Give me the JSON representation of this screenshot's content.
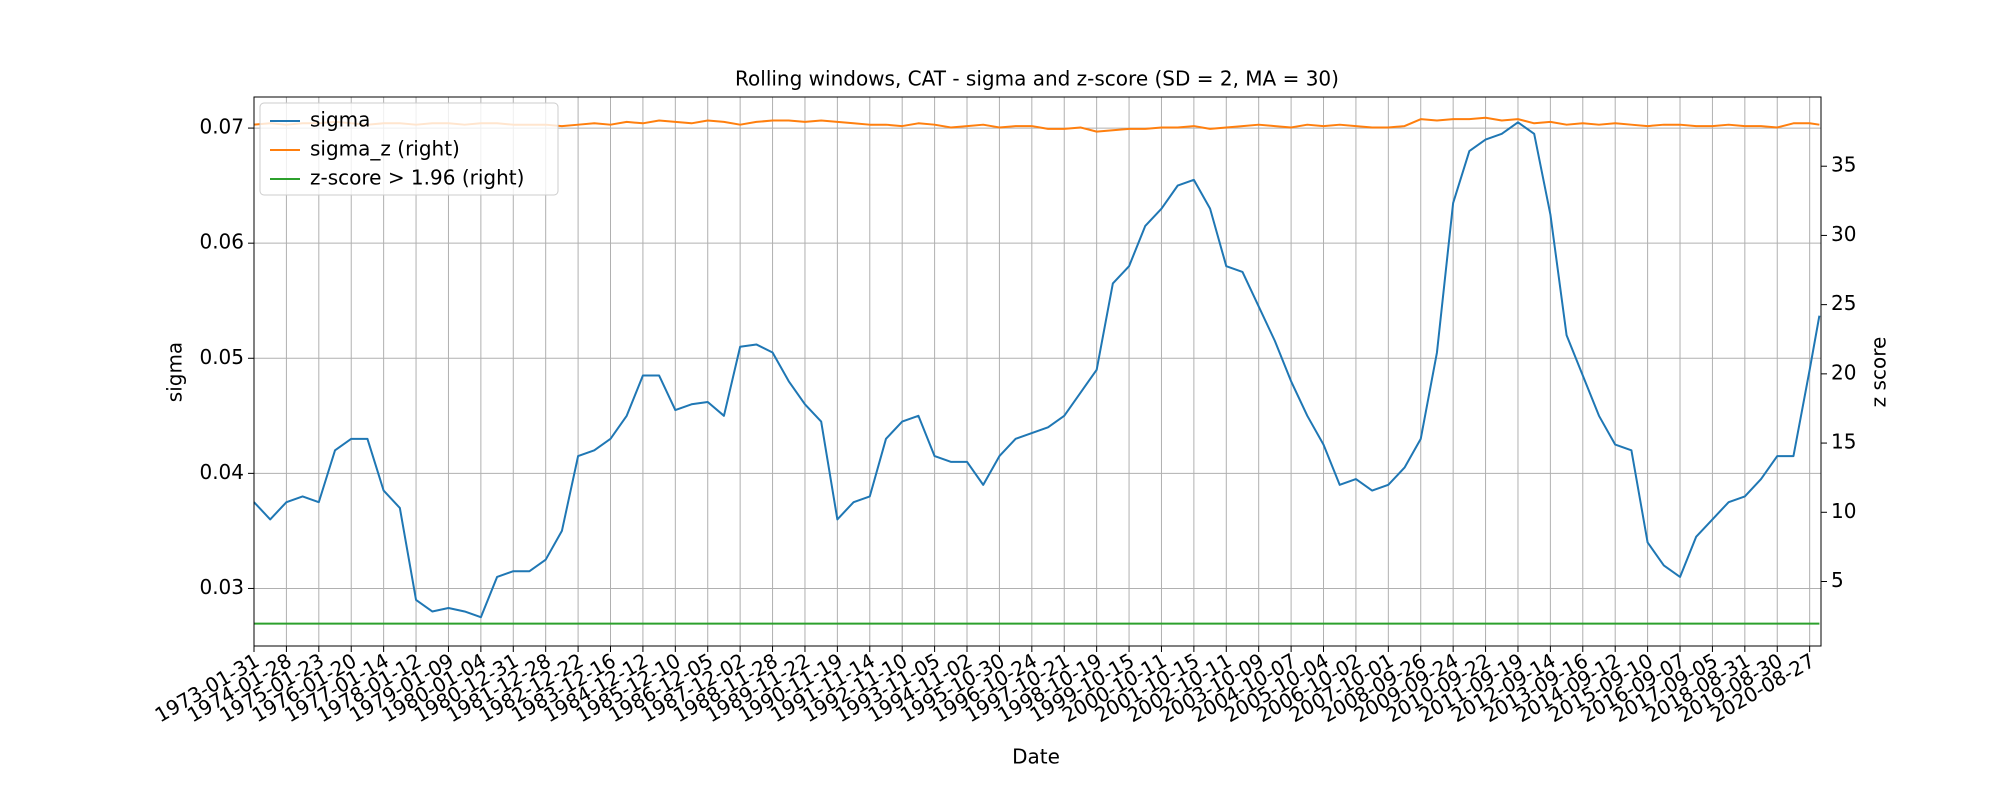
{
  "chart_data": {
    "type": "line",
    "title": "Rolling windows, CAT - sigma and z-score (SD = 2, MA = 30)",
    "x_label": "Date",
    "y_label": "sigma",
    "y2_label": "z score",
    "x": [
      0,
      0.5,
      1,
      1.5,
      2,
      2.5,
      3,
      3.5,
      4,
      4.5,
      5,
      5.5,
      6,
      6.5,
      7,
      7.5,
      8,
      8.5,
      9,
      9.5,
      10,
      10.5,
      11,
      11.5,
      12,
      12.5,
      13,
      13.5,
      14,
      14.5,
      15,
      15.5,
      16,
      16.5,
      17,
      17.5,
      18,
      18.5,
      19,
      19.5,
      20,
      20.5,
      21,
      21.5,
      22,
      22.5,
      23,
      23.5,
      24,
      24.5,
      25,
      25.5,
      26,
      26.5,
      27,
      27.5,
      28,
      28.5,
      29,
      29.5,
      30,
      30.5,
      31,
      31.5,
      32,
      32.5,
      33,
      33.5,
      34,
      34.5,
      35,
      35.5,
      36,
      36.5,
      37,
      37.5,
      38,
      38.5,
      39,
      39.5,
      40,
      40.5,
      41,
      41.5,
      42,
      42.5,
      43,
      43.5,
      44,
      44.5,
      45,
      45.5,
      46,
      46.5,
      47,
      47.5,
      48,
      48.3
    ],
    "series": [
      {
        "name": "sigma",
        "color": "#1f77b4",
        "values": [
          0.0375,
          0.036,
          0.0375,
          0.038,
          0.0375,
          0.042,
          0.043,
          0.043,
          0.0385,
          0.037,
          0.029,
          0.028,
          0.0283,
          0.028,
          0.0275,
          0.031,
          0.0315,
          0.0315,
          0.0325,
          0.035,
          0.0415,
          0.042,
          0.043,
          0.045,
          0.0485,
          0.0485,
          0.0455,
          0.046,
          0.0462,
          0.045,
          0.051,
          0.0512,
          0.0505,
          0.048,
          0.046,
          0.0445,
          0.036,
          0.0375,
          0.038,
          0.043,
          0.0445,
          0.045,
          0.0415,
          0.041,
          0.041,
          0.039,
          0.0415,
          0.043,
          0.0435,
          0.044,
          0.045,
          0.047,
          0.049,
          0.0565,
          0.058,
          0.0615,
          0.063,
          0.065,
          0.0655,
          0.063,
          0.058,
          0.0575,
          0.0545,
          0.0515,
          0.048,
          0.045,
          0.0425,
          0.039,
          0.0395,
          0.0385,
          0.039,
          0.0405,
          0.043,
          0.0505,
          0.0635,
          0.068,
          0.069,
          0.0695,
          0.0705,
          0.0695,
          0.0625,
          0.052,
          0.0485,
          0.045,
          0.0425,
          0.042,
          0.034,
          0.032,
          0.031,
          0.0345,
          0.036,
          0.0375,
          0.038,
          0.0395,
          0.0415,
          0.0415,
          0.049,
          0.0537
        ]
      },
      {
        "name": "sigma_z (right)",
        "color": "#ff7f0e",
        "axis": "y2",
        "values": [
          38.0,
          38.1,
          38.0,
          38.1,
          38.1,
          38.2,
          38.1,
          38.0,
          38.1,
          38.1,
          38.0,
          38.1,
          38.1,
          38.0,
          38.1,
          38.1,
          38.0,
          38.0,
          38.0,
          37.9,
          38.0,
          38.1,
          38.0,
          38.2,
          38.1,
          38.3,
          38.2,
          38.1,
          38.3,
          38.2,
          38.0,
          38.2,
          38.3,
          38.3,
          38.2,
          38.3,
          38.2,
          38.1,
          38.0,
          38.0,
          37.9,
          38.1,
          38.0,
          37.8,
          37.9,
          38.0,
          37.8,
          37.9,
          37.9,
          37.7,
          37.7,
          37.8,
          37.5,
          37.6,
          37.7,
          37.7,
          37.8,
          37.8,
          37.9,
          37.7,
          37.8,
          37.9,
          38.0,
          37.9,
          37.8,
          38.0,
          37.9,
          38.0,
          37.9,
          37.8,
          37.8,
          37.9,
          38.4,
          38.3,
          38.4,
          38.4,
          38.5,
          38.3,
          38.4,
          38.1,
          38.2,
          38.0,
          38.1,
          38.0,
          38.1,
          38.0,
          37.9,
          38.0,
          38.0,
          37.9,
          37.9,
          38.0,
          37.9,
          37.9,
          37.8,
          38.1,
          38.1,
          38.0
        ]
      },
      {
        "name": "z-score > 1.96 (right)",
        "color": "#2ca02c",
        "axis": "y2",
        "values": [
          1.96,
          1.96,
          1.96,
          1.96,
          1.96,
          1.96,
          1.96,
          1.96,
          1.96,
          1.96,
          1.96,
          1.96,
          1.96,
          1.96,
          1.96,
          1.96,
          1.96,
          1.96,
          1.96,
          1.96,
          1.96,
          1.96,
          1.96,
          1.96,
          1.96,
          1.96,
          1.96,
          1.96,
          1.96,
          1.96,
          1.96,
          1.96,
          1.96,
          1.96,
          1.96,
          1.96,
          1.96,
          1.96,
          1.96,
          1.96,
          1.96,
          1.96,
          1.96,
          1.96,
          1.96,
          1.96,
          1.96,
          1.96,
          1.96,
          1.96,
          1.96,
          1.96,
          1.96,
          1.96,
          1.96,
          1.96,
          1.96,
          1.96,
          1.96,
          1.96,
          1.96,
          1.96,
          1.96,
          1.96,
          1.96,
          1.96,
          1.96,
          1.96,
          1.96,
          1.96,
          1.96,
          1.96,
          1.96,
          1.96,
          1.96,
          1.96,
          1.96,
          1.96,
          1.96,
          1.96,
          1.96,
          1.96,
          1.96,
          1.96,
          1.96,
          1.96,
          1.96,
          1.96,
          1.96,
          1.96,
          1.96,
          1.96,
          1.96,
          1.96,
          1.96,
          1.96,
          1.96,
          1.96
        ]
      }
    ],
    "xlim": [
      0,
      48.35
    ],
    "xticks": [
      {
        "value": 0,
        "label": "1973-01-31"
      },
      {
        "value": 1,
        "label": "1974-01-28"
      },
      {
        "value": 2,
        "label": "1975-01-23"
      },
      {
        "value": 3,
        "label": "1976-01-20"
      },
      {
        "value": 4,
        "label": "1977-01-14"
      },
      {
        "value": 5,
        "label": "1978-01-12"
      },
      {
        "value": 6,
        "label": "1979-01-09"
      },
      {
        "value": 7,
        "label": "1980-01-04"
      },
      {
        "value": 8,
        "label": "1980-12-31"
      },
      {
        "value": 9,
        "label": "1981-12-28"
      },
      {
        "value": 10,
        "label": "1982-12-22"
      },
      {
        "value": 11,
        "label": "1983-12-16"
      },
      {
        "value": 12,
        "label": "1984-12-12"
      },
      {
        "value": 13,
        "label": "1985-12-10"
      },
      {
        "value": 14,
        "label": "1986-12-05"
      },
      {
        "value": 15,
        "label": "1987-12-02"
      },
      {
        "value": 16,
        "label": "1988-11-28"
      },
      {
        "value": 17,
        "label": "1989-11-22"
      },
      {
        "value": 18,
        "label": "1990-11-19"
      },
      {
        "value": 19,
        "label": "1991-11-14"
      },
      {
        "value": 20,
        "label": "1992-11-10"
      },
      {
        "value": 21,
        "label": "1993-11-05"
      },
      {
        "value": 22,
        "label": "1994-11-02"
      },
      {
        "value": 23,
        "label": "1995-10-30"
      },
      {
        "value": 24,
        "label": "1996-10-24"
      },
      {
        "value": 25,
        "label": "1997-10-21"
      },
      {
        "value": 26,
        "label": "1998-10-19"
      },
      {
        "value": 27,
        "label": "1999-10-15"
      },
      {
        "value": 28,
        "label": "2000-10-11"
      },
      {
        "value": 29,
        "label": "2001-10-15"
      },
      {
        "value": 30,
        "label": "2002-10-11"
      },
      {
        "value": 31,
        "label": "2003-10-09"
      },
      {
        "value": 32,
        "label": "2004-10-07"
      },
      {
        "value": 33,
        "label": "2005-10-04"
      },
      {
        "value": 34,
        "label": "2006-10-02"
      },
      {
        "value": 35,
        "label": "2007-10-01"
      },
      {
        "value": 36,
        "label": "2008-09-26"
      },
      {
        "value": 37,
        "label": "2009-09-24"
      },
      {
        "value": 38,
        "label": "2010-09-22"
      },
      {
        "value": 39,
        "label": "2011-09-19"
      },
      {
        "value": 40,
        "label": "2012-09-14"
      },
      {
        "value": 41,
        "label": "2013-09-16"
      },
      {
        "value": 42,
        "label": "2014-09-12"
      },
      {
        "value": 43,
        "label": "2015-09-10"
      },
      {
        "value": 44,
        "label": "2016-09-07"
      },
      {
        "value": 45,
        "label": "2017-09-05"
      },
      {
        "value": 46,
        "label": "2018-08-31"
      },
      {
        "value": 47,
        "label": "2019-08-30"
      },
      {
        "value": 48,
        "label": "2020-08-27"
      }
    ],
    "ylim": [
      0.025,
      0.0727
    ],
    "yticks": [
      0.03,
      0.04,
      0.05,
      0.06,
      0.07
    ],
    "y2lim": [
      0.34,
      40.0
    ],
    "y2ticks": [
      5,
      10,
      15,
      20,
      25,
      30,
      35
    ],
    "grid": true,
    "legend": "upper left"
  }
}
